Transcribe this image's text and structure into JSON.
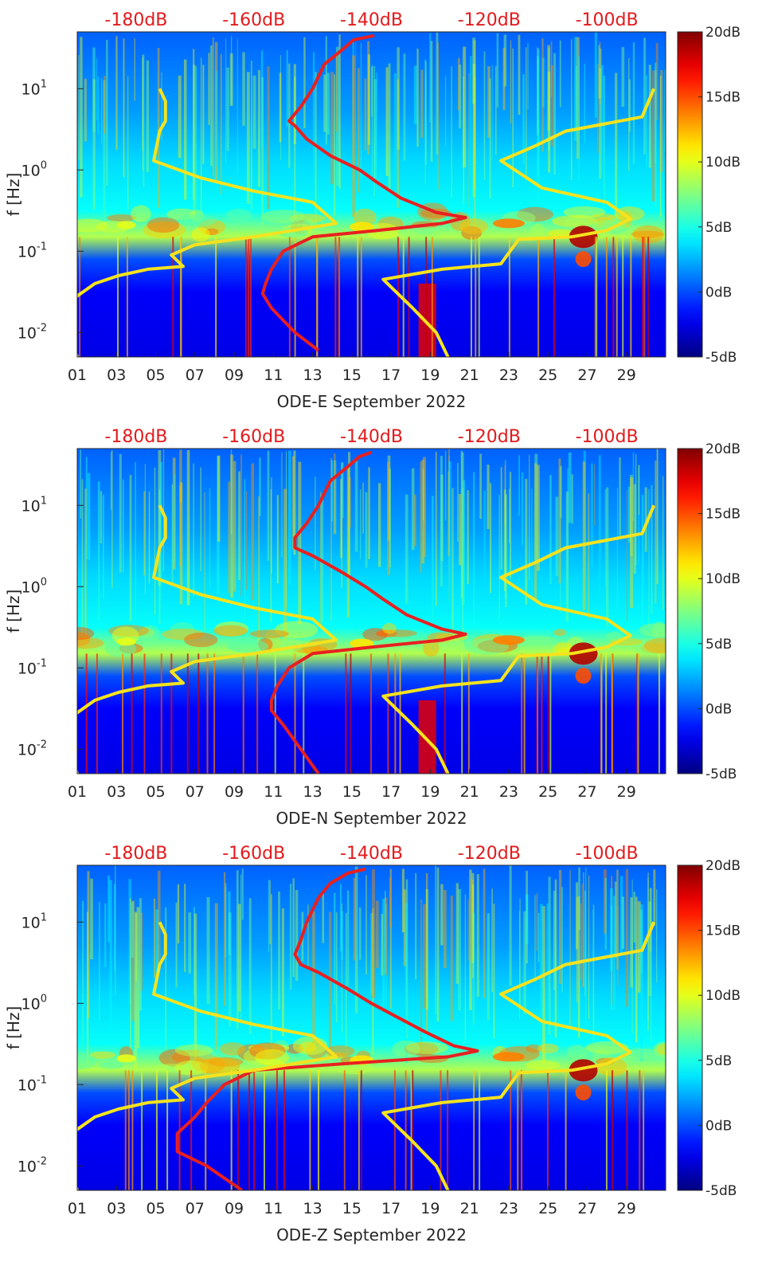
{
  "chart_data": [
    {
      "type": "heatmap",
      "xlabel": "ODE-E September 2022",
      "ylabel": "f [Hz]",
      "x_ticks": [
        "01",
        "03",
        "05",
        "07",
        "09",
        "11",
        "13",
        "15",
        "17",
        "19",
        "21",
        "23",
        "25",
        "27",
        "29"
      ],
      "x_range_days": [
        1,
        31
      ],
      "y_ticks": [
        "10-2",
        "10-1",
        "100",
        "101"
      ],
      "y_scale": "log",
      "y_range_hz": [
        0.005,
        50
      ],
      "top_axis_ticks": [
        "-180dB",
        "-160dB",
        "-140dB",
        "-120dB",
        "-100dB"
      ],
      "top_axis_range_db": [
        -190,
        -90
      ],
      "colorbar": {
        "ticks": [
          "-5dB",
          "0dB",
          "5dB",
          "10dB",
          "15dB",
          "20dB"
        ],
        "range_db": [
          -5,
          20
        ],
        "colormap": "jet"
      },
      "series": [
        {
          "color": "#e82020",
          "points": [
            [
              -139.5,
              45
            ],
            [
              -143,
              40
            ],
            [
              -145,
              30
            ],
            [
              -148,
              20
            ],
            [
              -150,
              10
            ],
            [
              -152,
              6
            ],
            [
              -154,
              4
            ],
            [
              -153,
              3.5
            ],
            [
              -151,
              2.4
            ],
            [
              -147,
              1.5
            ],
            [
              -142,
              1.0
            ],
            [
              -139,
              0.7
            ],
            [
              -135,
              0.45
            ],
            [
              -129,
              0.3
            ],
            [
              -124,
              0.26
            ],
            [
              -128,
              0.22
            ],
            [
              -139,
              0.18
            ],
            [
              -150,
              0.15
            ],
            [
              -155,
              0.1
            ],
            [
              -157,
              0.06
            ],
            [
              -158,
              0.04
            ],
            [
              -158.5,
              0.03
            ],
            [
              -157,
              0.02
            ],
            [
              -153,
              0.01
            ],
            [
              -149,
              0.006
            ]
          ]
        },
        {
          "color": "#f5e31e",
          "points": [
            [
              -176,
              10
            ],
            [
              -175,
              7
            ],
            [
              -175,
              4
            ],
            [
              -176,
              3
            ],
            [
              -177,
              1.3
            ],
            [
              -169,
              0.8
            ],
            [
              -160,
              0.55
            ],
            [
              -150,
              0.4
            ],
            [
              -146,
              0.22
            ],
            [
              -160,
              0.15
            ],
            [
              -170,
              0.12
            ],
            [
              -174,
              0.09
            ],
            [
              -172,
              0.065
            ],
            [
              -178,
              0.06
            ],
            [
              -183,
              0.05
            ],
            [
              -187,
              0.04
            ],
            [
              -191,
              0.025
            ],
            [
              -192,
              0.015
            ],
            [
              -191,
              0.008
            ],
            [
              -190,
              0.005
            ]
          ]
        },
        {
          "color": "#f5e31e",
          "points": [
            [
              -92,
              10
            ],
            [
              -94,
              4.5
            ],
            [
              -107,
              3
            ],
            [
              -112,
              2
            ],
            [
              -118,
              1.3
            ],
            [
              -111,
              0.6
            ],
            [
              -100,
              0.4
            ],
            [
              -96,
              0.25
            ],
            [
              -100,
              0.18
            ],
            [
              -106,
              0.15
            ],
            [
              -115,
              0.14
            ],
            [
              -118,
              0.07
            ],
            [
              -128,
              0.06
            ],
            [
              -138,
              0.045
            ],
            [
              -133,
              0.02
            ],
            [
              -129,
              0.01
            ],
            [
              -127,
              0.005
            ]
          ]
        }
      ]
    },
    {
      "type": "heatmap",
      "xlabel": "ODE-N September 2022",
      "ylabel": "f [Hz]",
      "x_ticks": [
        "01",
        "03",
        "05",
        "07",
        "09",
        "11",
        "13",
        "15",
        "17",
        "19",
        "21",
        "23",
        "25",
        "27",
        "29"
      ],
      "x_range_days": [
        1,
        31
      ],
      "y_ticks": [
        "10-2",
        "10-1",
        "100",
        "101"
      ],
      "y_scale": "log",
      "y_range_hz": [
        0.005,
        50
      ],
      "top_axis_ticks": [
        "-180dB",
        "-160dB",
        "-140dB",
        "-120dB",
        "-100dB"
      ],
      "top_axis_range_db": [
        -190,
        -90
      ],
      "colorbar": {
        "ticks": [
          "-5dB",
          "0dB",
          "5dB",
          "10dB",
          "15dB",
          "20dB"
        ],
        "range_db": [
          -5,
          20
        ],
        "colormap": "jet"
      },
      "series": [
        {
          "color": "#e82020",
          "points": [
            [
              -140,
              45
            ],
            [
              -142,
              40
            ],
            [
              -144,
              30
            ],
            [
              -147,
              20
            ],
            [
              -149,
              10
            ],
            [
              -151,
              6
            ],
            [
              -153,
              4
            ],
            [
              -153,
              3.0
            ],
            [
              -150,
              2.4
            ],
            [
              -145,
              1.5
            ],
            [
              -141,
              1.0
            ],
            [
              -138,
              0.7
            ],
            [
              -134,
              0.45
            ],
            [
              -128,
              0.3
            ],
            [
              -124,
              0.26
            ],
            [
              -128,
              0.22
            ],
            [
              -140,
              0.18
            ],
            [
              -150,
              0.15
            ],
            [
              -154,
              0.1
            ],
            [
              -156,
              0.06
            ],
            [
              -157,
              0.04
            ],
            [
              -157,
              0.03
            ],
            [
              -155,
              0.02
            ],
            [
              -152,
              0.01
            ],
            [
              -149,
              0.005
            ]
          ]
        },
        {
          "color": "#f5e31e",
          "points": [
            [
              -176,
              10
            ],
            [
              -175,
              7
            ],
            [
              -175,
              4
            ],
            [
              -176,
              3
            ],
            [
              -177,
              1.3
            ],
            [
              -169,
              0.8
            ],
            [
              -160,
              0.55
            ],
            [
              -150,
              0.4
            ],
            [
              -146,
              0.22
            ],
            [
              -160,
              0.15
            ],
            [
              -170,
              0.12
            ],
            [
              -174,
              0.09
            ],
            [
              -172,
              0.065
            ],
            [
              -178,
              0.06
            ],
            [
              -183,
              0.05
            ],
            [
              -187,
              0.04
            ],
            [
              -191,
              0.025
            ],
            [
              -192,
              0.015
            ],
            [
              -191,
              0.008
            ],
            [
              -190,
              0.005
            ]
          ]
        },
        {
          "color": "#f5e31e",
          "points": [
            [
              -92,
              10
            ],
            [
              -94,
              4.5
            ],
            [
              -107,
              3
            ],
            [
              -112,
              2
            ],
            [
              -118,
              1.3
            ],
            [
              -111,
              0.6
            ],
            [
              -100,
              0.4
            ],
            [
              -96,
              0.25
            ],
            [
              -100,
              0.18
            ],
            [
              -106,
              0.15
            ],
            [
              -115,
              0.14
            ],
            [
              -118,
              0.07
            ],
            [
              -128,
              0.06
            ],
            [
              -138,
              0.045
            ],
            [
              -133,
              0.02
            ],
            [
              -129,
              0.01
            ],
            [
              -127,
              0.005
            ]
          ]
        }
      ]
    },
    {
      "type": "heatmap",
      "xlabel": "ODE-Z September 2022",
      "ylabel": "f [Hz]",
      "x_ticks": [
        "01",
        "03",
        "05",
        "07",
        "09",
        "11",
        "13",
        "15",
        "17",
        "19",
        "21",
        "23",
        "25",
        "27",
        "29"
      ],
      "x_range_days": [
        1,
        31
      ],
      "y_ticks": [
        "10-2",
        "10-1",
        "100",
        "101"
      ],
      "y_scale": "log",
      "y_range_hz": [
        0.005,
        50
      ],
      "top_axis_ticks": [
        "-180dB",
        "-160dB",
        "-140dB",
        "-120dB",
        "-100dB"
      ],
      "top_axis_range_db": [
        -190,
        -90
      ],
      "colorbar": {
        "ticks": [
          "-5dB",
          "0dB",
          "5dB",
          "10dB",
          "15dB",
          "20dB"
        ],
        "range_db": [
          -5,
          20
        ],
        "colormap": "jet"
      },
      "series": [
        {
          "color": "#e82020",
          "points": [
            [
              -141,
              45
            ],
            [
              -144,
              40
            ],
            [
              -147,
              30
            ],
            [
              -149,
              20
            ],
            [
              -151,
              10
            ],
            [
              -152,
              6
            ],
            [
              -153,
              4
            ],
            [
              -152,
              3.0
            ],
            [
              -149,
              2.4
            ],
            [
              -144,
              1.5
            ],
            [
              -140,
              1.0
            ],
            [
              -136,
              0.7
            ],
            [
              -131,
              0.45
            ],
            [
              -126,
              0.3
            ],
            [
              -122,
              0.26
            ],
            [
              -127,
              0.22
            ],
            [
              -145,
              0.18
            ],
            [
              -160,
              0.15
            ],
            [
              -165,
              0.1
            ],
            [
              -168,
              0.06
            ],
            [
              -170,
              0.04
            ],
            [
              -173,
              0.025
            ],
            [
              -173,
              0.015
            ],
            [
              -168,
              0.01
            ],
            [
              -162,
              0.005
            ]
          ]
        },
        {
          "color": "#f5e31e",
          "points": [
            [
              -176,
              10
            ],
            [
              -175,
              7
            ],
            [
              -175,
              4
            ],
            [
              -176,
              3
            ],
            [
              -177,
              1.3
            ],
            [
              -169,
              0.8
            ],
            [
              -160,
              0.55
            ],
            [
              -150,
              0.4
            ],
            [
              -146,
              0.22
            ],
            [
              -160,
              0.15
            ],
            [
              -170,
              0.12
            ],
            [
              -174,
              0.09
            ],
            [
              -172,
              0.065
            ],
            [
              -178,
              0.06
            ],
            [
              -183,
              0.05
            ],
            [
              -187,
              0.04
            ],
            [
              -191,
              0.025
            ],
            [
              -192,
              0.015
            ],
            [
              -191,
              0.008
            ],
            [
              -190,
              0.005
            ]
          ]
        },
        {
          "color": "#f5e31e",
          "points": [
            [
              -92,
              10
            ],
            [
              -94,
              4.5
            ],
            [
              -107,
              3
            ],
            [
              -112,
              2
            ],
            [
              -118,
              1.3
            ],
            [
              -111,
              0.6
            ],
            [
              -100,
              0.4
            ],
            [
              -96,
              0.25
            ],
            [
              -100,
              0.18
            ],
            [
              -106,
              0.15
            ],
            [
              -115,
              0.14
            ],
            [
              -118,
              0.07
            ],
            [
              -128,
              0.06
            ],
            [
              -138,
              0.045
            ],
            [
              -133,
              0.02
            ],
            [
              -129,
              0.01
            ],
            [
              -127,
              0.005
            ]
          ]
        }
      ]
    }
  ]
}
